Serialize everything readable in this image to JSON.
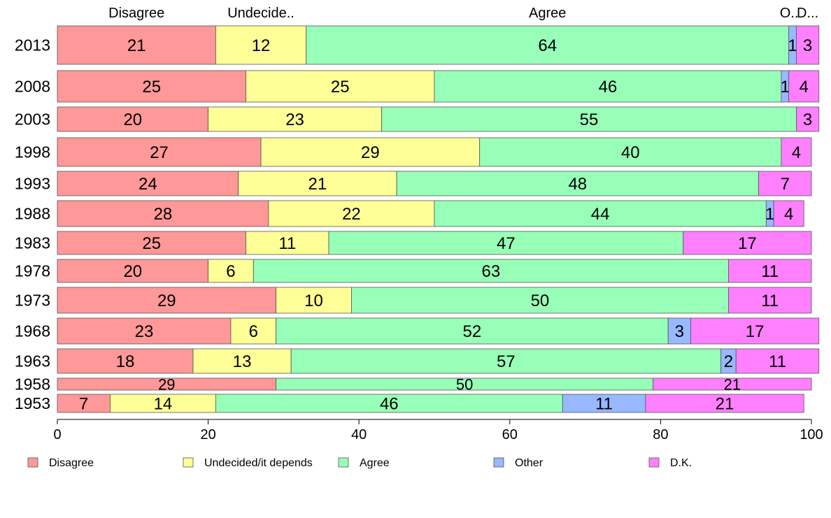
{
  "chart_data": {
    "type": "bar",
    "orientation": "horizontal",
    "stacked": true,
    "categories": [
      "2013",
      "2008",
      "2003",
      "1998",
      "1993",
      "1988",
      "1983",
      "1978",
      "1973",
      "1968",
      "1963",
      "1958",
      "1953"
    ],
    "series": [
      {
        "name": "Disagree",
        "color": "#ff9898",
        "values": [
          21,
          25,
          20,
          27,
          24,
          28,
          25,
          20,
          29,
          23,
          18,
          29,
          7
        ]
      },
      {
        "name": "Undecided/it depends",
        "color": "#ffff98",
        "values": [
          12,
          25,
          23,
          29,
          21,
          22,
          11,
          6,
          10,
          6,
          13,
          0,
          14
        ]
      },
      {
        "name": "Agree",
        "color": "#98ffb8",
        "values": [
          64,
          46,
          55,
          40,
          48,
          44,
          47,
          63,
          50,
          52,
          57,
          50,
          46
        ]
      },
      {
        "name": "Other",
        "color": "#98b8ff",
        "values": [
          1,
          1,
          0,
          0,
          0,
          1,
          0,
          0,
          0,
          3,
          2,
          0,
          11
        ]
      },
      {
        "name": "D.K.",
        "color": "#ff80ff",
        "values": [
          3,
          4,
          3,
          4,
          7,
          4,
          17,
          11,
          11,
          17,
          11,
          21,
          21
        ]
      }
    ],
    "top_labels": [
      "Disagree",
      "Undecide..",
      "Agree",
      "O..",
      "D..."
    ],
    "x_ticks": [
      "0",
      "20",
      "40",
      "60",
      "80",
      "100"
    ],
    "xlim": [
      0,
      100
    ],
    "legend_placement": "bottom",
    "grid": false
  }
}
